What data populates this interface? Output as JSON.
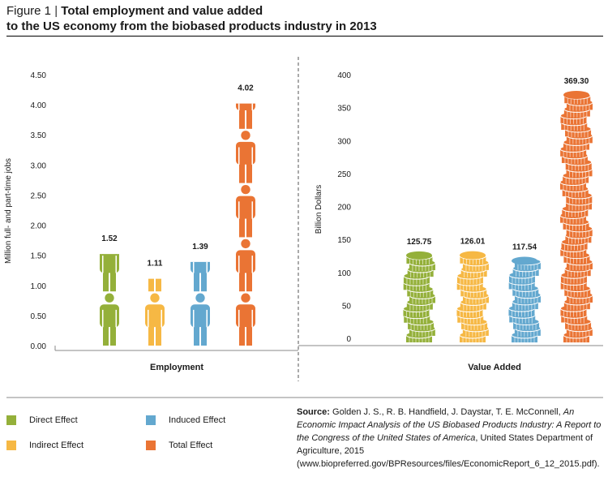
{
  "figure": {
    "label": "Figure 1",
    "separator": "|",
    "title_line1": "Total employment and value added",
    "title_line2": "to the US economy from the biobased products industry in 2013"
  },
  "colors": {
    "direct": "#94b03a",
    "indirect": "#f6b844",
    "induced": "#63a8cf",
    "total": "#ea7434"
  },
  "chart_data": [
    {
      "type": "bar",
      "categories": [
        "Direct Effect",
        "Indirect Effect",
        "Induced Effect",
        "Total Effect"
      ],
      "values": [
        1.52,
        1.11,
        1.39,
        4.02
      ],
      "value_labels": [
        "1.52",
        "1.11",
        "1.39",
        "4.02"
      ],
      "title": "",
      "xlabel": "Employment",
      "ylabel": "Million full- and part-time jobs",
      "ylim": [
        0,
        4.5
      ],
      "yticks": [
        "0.00",
        "0.50",
        "1.00",
        "1.50",
        "2.00",
        "2.50",
        "3.00",
        "3.50",
        "4.00",
        "4.50"
      ],
      "mark": "person-icons"
    },
    {
      "type": "bar",
      "categories": [
        "Direct Effect",
        "Indirect Effect",
        "Induced Effect",
        "Total Effect"
      ],
      "values": [
        125.75,
        126.01,
        117.54,
        369.3
      ],
      "value_labels": [
        "125.75",
        "126.01",
        "117.54",
        "369.30"
      ],
      "title": "",
      "xlabel": "Value Added",
      "ylabel": "Billion Dollars",
      "ylim": [
        0,
        400
      ],
      "yticks": [
        "0",
        "50",
        "100",
        "150",
        "200",
        "250",
        "300",
        "350",
        "400"
      ],
      "mark": "coin-stacks"
    }
  ],
  "legend": [
    {
      "label": "Direct Effect",
      "color": "#94b03a"
    },
    {
      "label": "Induced Effect",
      "color": "#63a8cf"
    },
    {
      "label": "Indirect Effect",
      "color": "#f6b844"
    },
    {
      "label": "Total Effect",
      "color": "#ea7434"
    }
  ],
  "source": {
    "lead": "Source:",
    "authors": "Golden J. S., R. B. Handfield, J. Daystar, T. E. McConnell,",
    "title_italic": "An Economic Impact Analysis of the US Biobased Products Industry: A Report to the Congress of the United States of America",
    "rest": ", United States Department of Agriculture, 2015 (www.biopreferred.gov/BPResources/files/EconomicReport_6_12_2015.pdf)."
  }
}
